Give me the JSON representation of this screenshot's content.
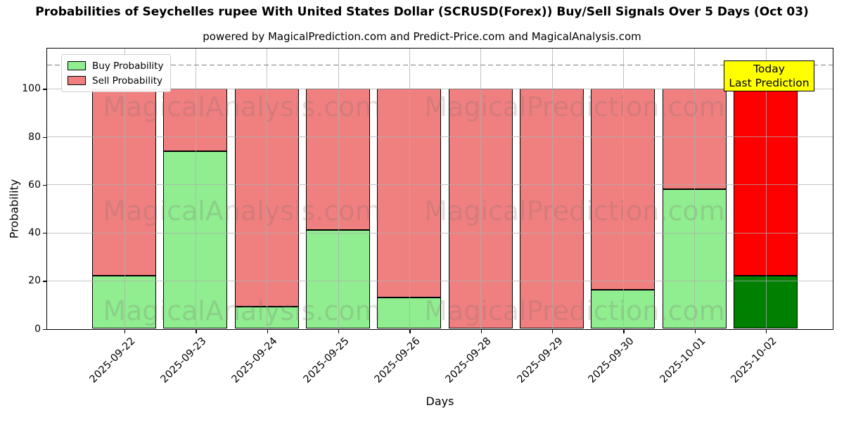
{
  "figure": {
    "title": "Probabilities of Seychelles rupee With United States Dollar (SCRUSD(Forex)) Buy/Sell Signals Over 5 Days (Oct 03)",
    "subtitle": "powered by MagicalPrediction.com and Predict-Price.com and MagicalAnalysis.com"
  },
  "chart_data": {
    "type": "bar",
    "stacked": true,
    "title": "Probabilities of Seychelles rupee With United States Dollar (SCRUSD(Forex)) Buy/Sell Signals Over 5 Days (Oct 03)",
    "subtitle": "powered by MagicalPrediction.com and Predict-Price.com and MagicalAnalysis.com",
    "xlabel": "Days",
    "ylabel": "Probability",
    "categories": [
      "2025-09-22",
      "2025-09-23",
      "2025-09-24",
      "2025-09-25",
      "2025-09-26",
      "2025-09-28",
      "2025-09-29",
      "2025-09-30",
      "2025-10-01",
      "2025-10-02"
    ],
    "series": [
      {
        "name": "Buy Probability",
        "color": "#90EE90",
        "today_color": "#008000",
        "values": [
          22,
          74,
          9,
          41,
          13,
          0,
          0,
          16,
          58,
          22
        ]
      },
      {
        "name": "Sell Probability",
        "color": "#F08080",
        "today_color": "#FF0000",
        "values": [
          78,
          26,
          91,
          59,
          87,
          100,
          100,
          84,
          42,
          78
        ]
      }
    ],
    "ylim": [
      0,
      116.7
    ],
    "yticks": [
      0,
      20,
      40,
      60,
      80,
      100
    ],
    "grid": true,
    "legend_position": "upper left",
    "dashed_line_y": 110,
    "today_index": 9,
    "annotation": {
      "lines": [
        "Today",
        "Last Prediction"
      ],
      "bg_color": "#FFFF00"
    },
    "watermark": {
      "left_text": "MagicalAnalysis.com",
      "right_text": "MagicalPrediction.com",
      "rows": 3
    }
  }
}
